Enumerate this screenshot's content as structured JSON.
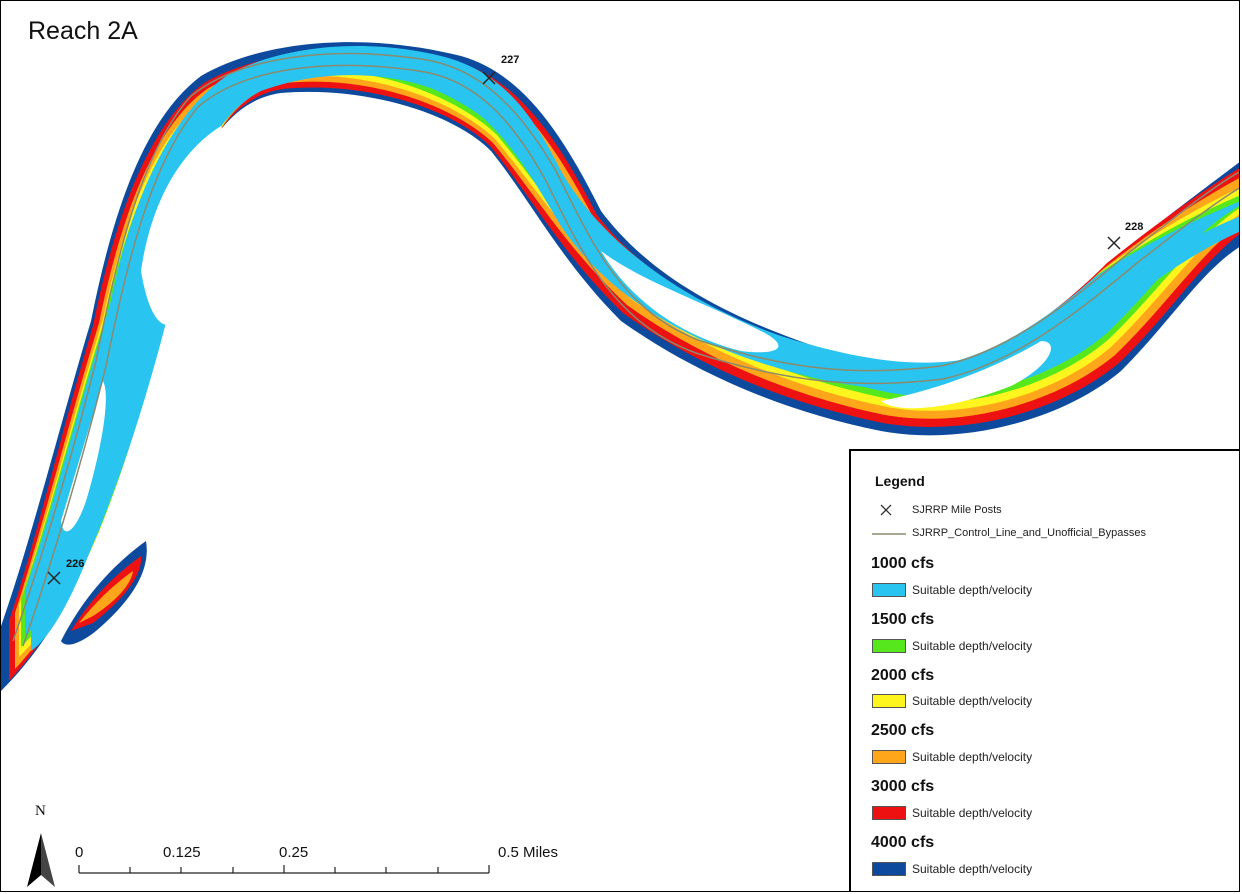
{
  "map": {
    "title": "Reach 2A",
    "mile_posts": [
      {
        "label": "227"
      },
      {
        "label": "228"
      },
      {
        "label": "226"
      }
    ]
  },
  "legend": {
    "title": "Legend",
    "mile_posts_label": "SJRRP Mile Posts",
    "control_line_label": "SJRRP_Control_Line_and_Unofficial_Bypasses",
    "classes": [
      {
        "flow": "1000 cfs",
        "label": "Suitable depth/velocity",
        "color": "#29c4f0"
      },
      {
        "flow": "1500 cfs",
        "label": "Suitable depth/velocity",
        "color": "#56e81c"
      },
      {
        "flow": "2000 cfs",
        "label": "Suitable depth/velocity",
        "color": "#fff51e"
      },
      {
        "flow": "2500 cfs",
        "label": "Suitable depth/velocity",
        "color": "#ffa61a"
      },
      {
        "flow": "3000 cfs",
        "label": "Suitable depth/velocity",
        "color": "#ee1111"
      },
      {
        "flow": "4000 cfs",
        "label": "Suitable depth/velocity",
        "color": "#0d4a9e"
      }
    ]
  },
  "scale_bar": {
    "labels": [
      "0",
      "0.125",
      "0.25",
      "0.5 Miles"
    ]
  },
  "north_arrow": {
    "label": "N"
  },
  "colors": {
    "control_line": "#8a8a6e",
    "water_white": "#ffffff"
  }
}
